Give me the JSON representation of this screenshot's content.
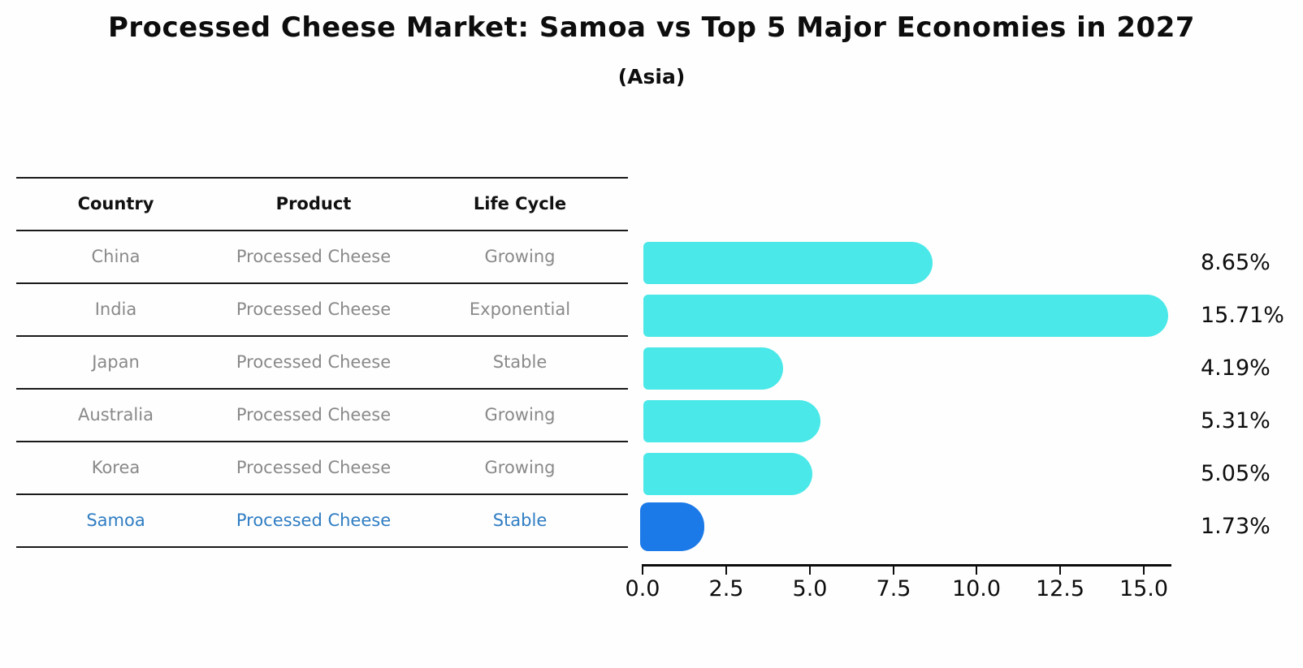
{
  "title": "Processed Cheese Market: Samoa vs Top 5 Major Economies in 2027",
  "subtitle": "(Asia)",
  "table": {
    "headers": [
      "Country",
      "Product",
      "Life Cycle"
    ],
    "rows": [
      {
        "country": "China",
        "product": "Processed Cheese",
        "life_cycle": "Growing",
        "highlight": false
      },
      {
        "country": "India",
        "product": "Processed Cheese",
        "life_cycle": "Exponential",
        "highlight": false
      },
      {
        "country": "Japan",
        "product": "Processed Cheese",
        "life_cycle": "Stable",
        "highlight": false
      },
      {
        "country": "Australia",
        "product": "Processed Cheese",
        "life_cycle": "Growing",
        "highlight": false
      },
      {
        "country": "Korea",
        "product": "Processed Cheese",
        "life_cycle": "Growing",
        "highlight": false
      },
      {
        "country": "Samoa",
        "product": "Processed Cheese",
        "life_cycle": "Stable",
        "highlight": true
      }
    ]
  },
  "chart_data": {
    "type": "bar",
    "orientation": "horizontal",
    "title": "Processed Cheese Market: Samoa vs Top 5 Major Economies in 2027",
    "subtitle": "(Asia)",
    "categories": [
      "China",
      "India",
      "Japan",
      "Australia",
      "Korea",
      "Samoa"
    ],
    "values": [
      8.65,
      15.71,
      4.19,
      5.31,
      5.05,
      1.73
    ],
    "value_labels": [
      "8.65%",
      "15.71%",
      "4.19%",
      "5.31%",
      "5.05%",
      "1.73%"
    ],
    "highlight_index": 5,
    "xlim": [
      0,
      15.8
    ],
    "xticks": [
      0.0,
      2.5,
      5.0,
      7.5,
      10.0,
      12.5,
      15.0
    ],
    "xtick_labels": [
      "0.0",
      "2.5",
      "5.0",
      "7.5",
      "10.0",
      "12.5",
      "15.0"
    ],
    "grid": false,
    "legend": false,
    "colors": {
      "bar": "#4ae8e8",
      "highlight_bar": "#1c7ae8",
      "highlight_text": "#2f7dc3",
      "table_text": "#898989",
      "axis": "#0d0d0d"
    }
  }
}
